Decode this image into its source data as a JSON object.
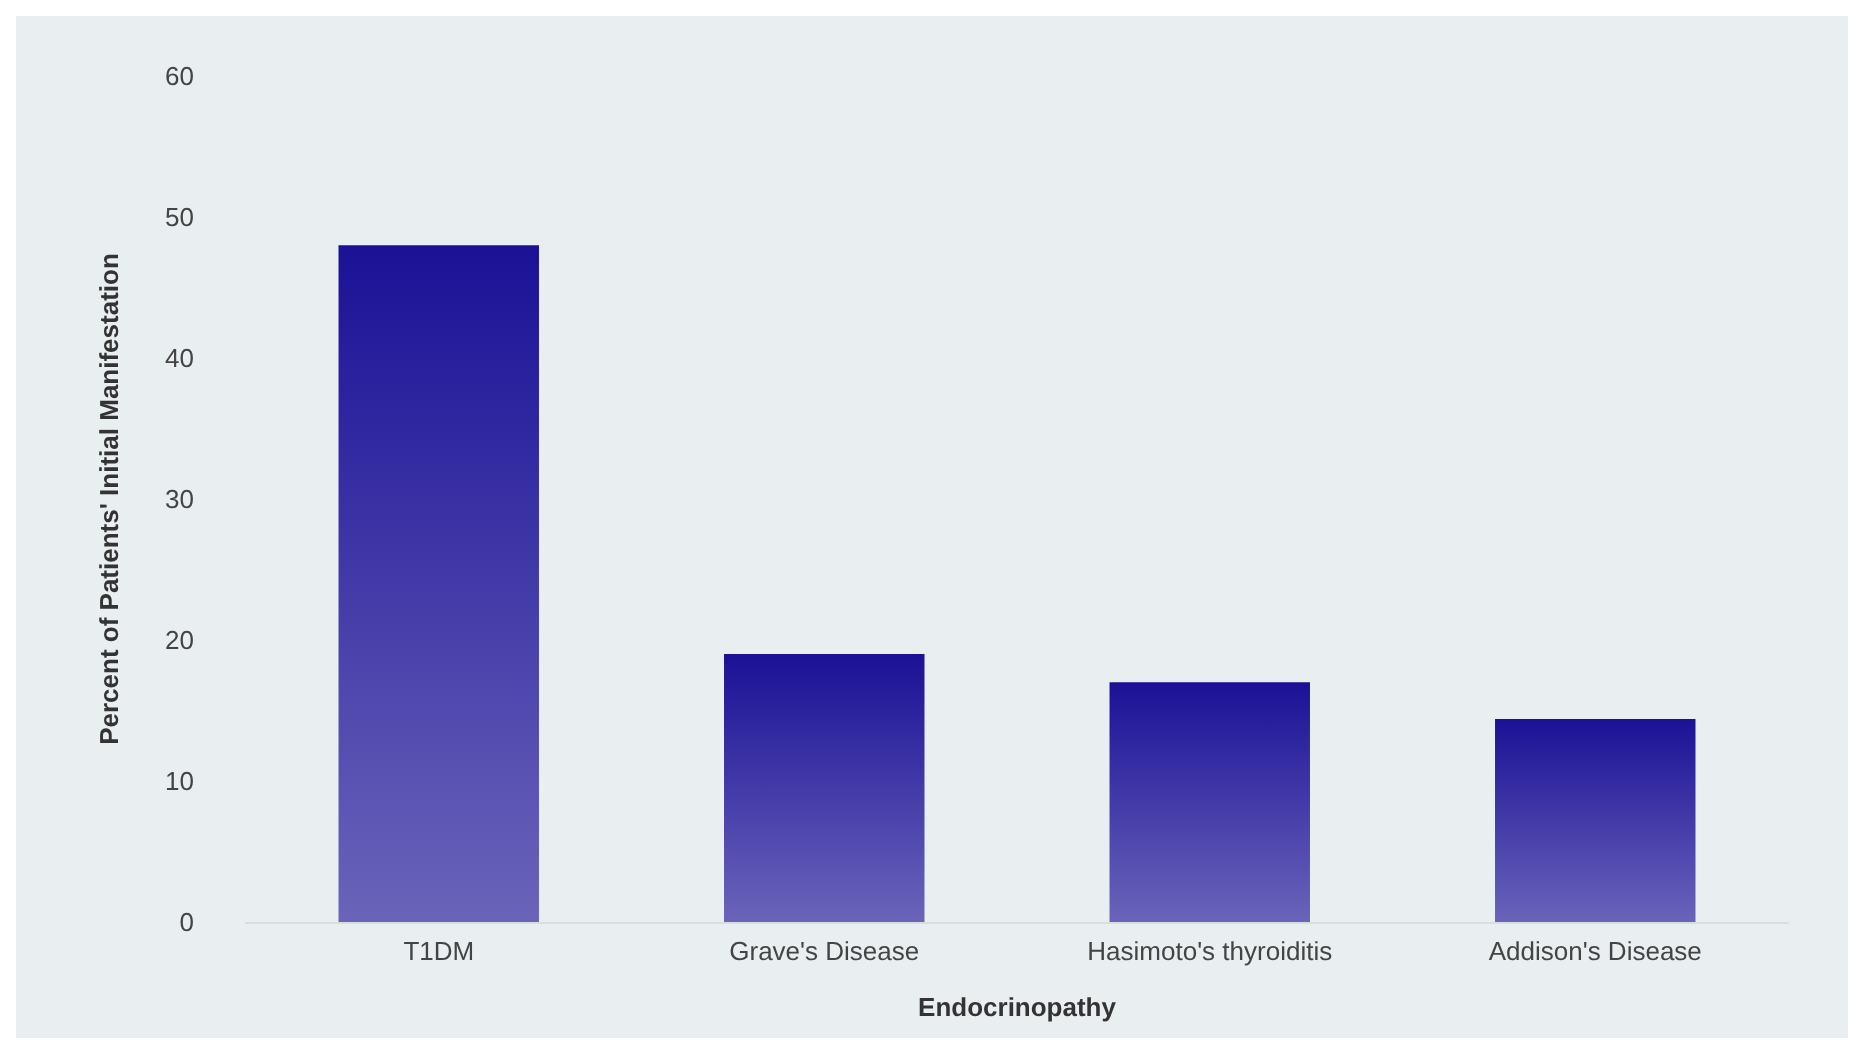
{
  "chart_data": {
    "type": "bar",
    "xlabel": "Endocrinopathy",
    "ylabel": "Percent of Patients' Initial Manifestation",
    "categories": [
      "T1DM",
      "Grave's Disease",
      "Hasimoto's thyroiditis",
      "Addison's Disease"
    ],
    "values": [
      48,
      19,
      17,
      14.4
    ],
    "color": "#1a1196",
    "ylim": [
      0,
      60
    ],
    "yticks": [
      0,
      10,
      20,
      30,
      40,
      50,
      60
    ],
    "grid": false
  }
}
